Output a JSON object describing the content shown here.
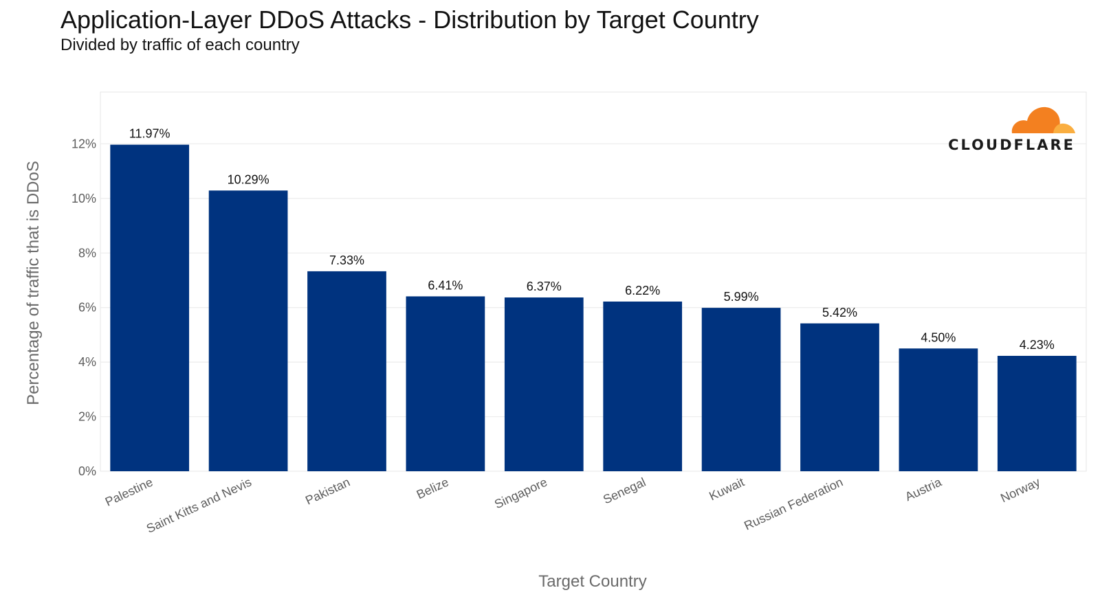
{
  "header": {
    "title": "Application-Layer DDoS Attacks - Distribution by Target Country",
    "subtitle": "Divided by traffic of each country"
  },
  "logo": {
    "text": "CLOUDFLARE",
    "icon": "cloud-icon",
    "colors": [
      "#f38020",
      "#faae40"
    ]
  },
  "colors": {
    "bar": "#00337f",
    "grid": "#ececec",
    "panel_border": "#e6e6e6"
  },
  "chart_data": {
    "type": "bar",
    "categories": [
      "Palestine",
      "Saint Kitts and Nevis",
      "Pakistan",
      "Belize",
      "Singapore",
      "Senegal",
      "Kuwait",
      "Russian Federation",
      "Austria",
      "Norway"
    ],
    "values": [
      11.97,
      10.29,
      7.33,
      6.41,
      6.37,
      6.22,
      5.99,
      5.42,
      4.5,
      4.23
    ],
    "data_labels": [
      "11.97%",
      "10.29%",
      "7.33%",
      "6.41%",
      "6.37%",
      "6.22%",
      "5.99%",
      "5.42%",
      "4.50%",
      "4.23%"
    ],
    "title": "Application-Layer DDoS Attacks - Distribution by Target Country",
    "subtitle": "Divided by traffic of each country",
    "xlabel": "Target Country",
    "ylabel": "Percentage of traffic that is DDoS",
    "ylim": [
      0,
      13.9
    ],
    "yticks": [
      0,
      2,
      4,
      6,
      8,
      10,
      12
    ],
    "ytick_labels": [
      "0%",
      "2%",
      "4%",
      "6%",
      "8%",
      "10%",
      "12%"
    ],
    "grid": true,
    "legend": "none"
  }
}
